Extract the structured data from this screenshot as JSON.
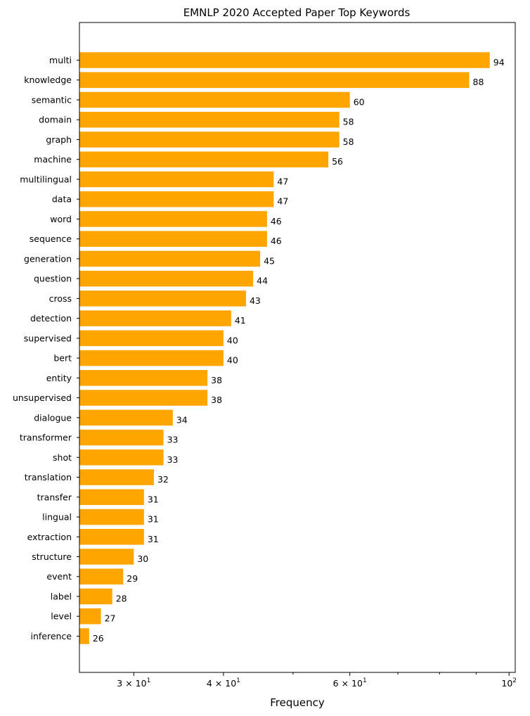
{
  "chart_data": {
    "type": "bar",
    "orientation": "horizontal",
    "title": "EMNLP 2020 Accepted Paper Top Keywords",
    "xlabel": "Frequency",
    "ylabel": "",
    "x_scale": "log",
    "xlim": [
      25.2,
      102
    ],
    "grid": false,
    "bar_color": "#ffa500",
    "x_ticks": [
      {
        "value": 30,
        "mantissa": "3",
        "base": "10",
        "exp": "1"
      },
      {
        "value": 40,
        "mantissa": "4",
        "base": "10",
        "exp": "1"
      },
      {
        "value": 60,
        "mantissa": "6",
        "base": "10",
        "exp": "1"
      },
      {
        "value": 100,
        "mantissa": "",
        "base": "10",
        "exp": "2"
      }
    ],
    "x_minor_ticks": [
      50,
      70,
      80,
      90
    ],
    "categories": [
      "multi",
      "knowledge",
      "semantic",
      "domain",
      "graph",
      "machine",
      "multilingual",
      "data",
      "word",
      "sequence",
      "generation",
      "question",
      "cross",
      "detection",
      "supervised",
      "bert",
      "entity",
      "unsupervised",
      "dialogue",
      "transformer",
      "shot",
      "translation",
      "transfer",
      "lingual",
      "extraction",
      "structure",
      "event",
      "label",
      "level",
      "inference"
    ],
    "values": [
      94,
      88,
      60,
      58,
      58,
      56,
      47,
      47,
      46,
      46,
      45,
      44,
      43,
      41,
      40,
      40,
      38,
      38,
      34,
      33,
      33,
      32,
      31,
      31,
      31,
      30,
      29,
      28,
      27,
      26
    ],
    "value_labels": [
      "94",
      "88",
      "60",
      "58",
      "58",
      "56",
      "47",
      "47",
      "46",
      "46",
      "45",
      "44",
      "43",
      "41",
      "40",
      "40",
      "38",
      "38",
      "34",
      "33",
      "33",
      "32",
      "31",
      "31",
      "31",
      "30",
      "29",
      "28",
      "27",
      "26"
    ]
  }
}
